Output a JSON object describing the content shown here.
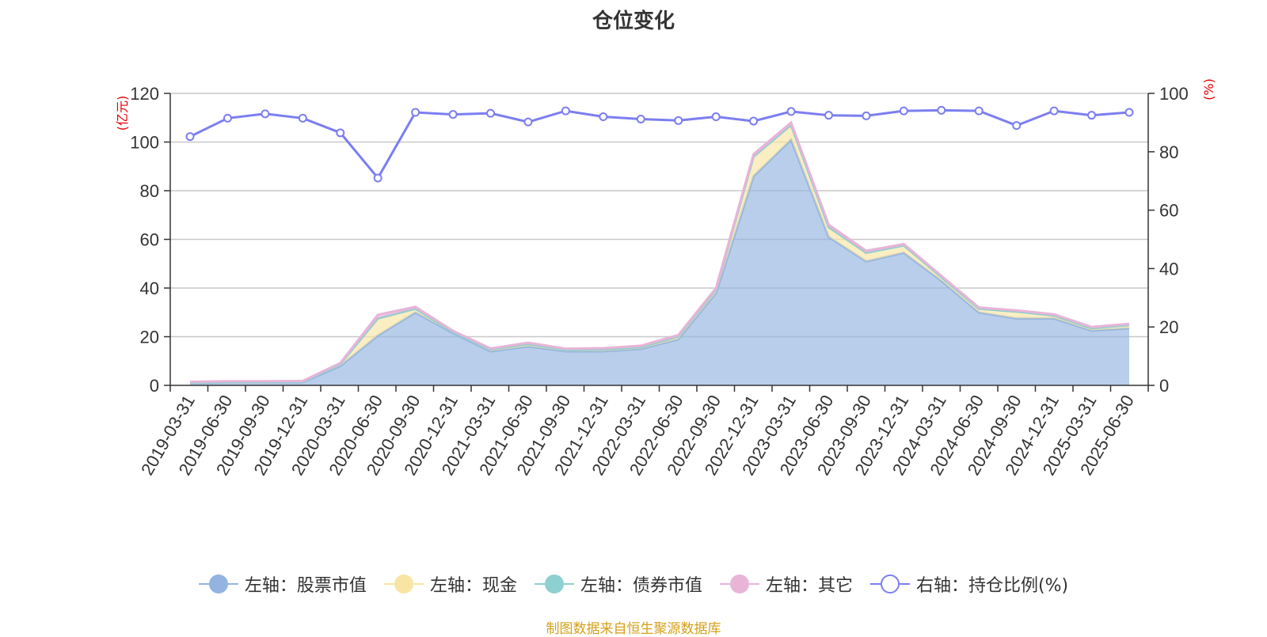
{
  "title": "仓位变化",
  "credit": "制图数据来自恒生聚源数据库",
  "chart_data": {
    "type": "area",
    "title": "仓位变化",
    "x": [
      "2019-03-31",
      "2019-06-30",
      "2019-09-30",
      "2019-12-31",
      "2020-03-31",
      "2020-06-30",
      "2020-09-30",
      "2020-12-31",
      "2021-03-31",
      "2021-06-30",
      "2021-09-30",
      "2021-12-31",
      "2022-03-31",
      "2022-06-30",
      "2022-09-30",
      "2022-12-31",
      "2023-03-31",
      "2023-06-30",
      "2023-09-30",
      "2023-12-31",
      "2024-03-31",
      "2024-06-30",
      "2024-09-30",
      "2024-12-31",
      "2025-03-31",
      "2025-06-30"
    ],
    "left_axis": {
      "unit": "(亿元)",
      "ylim": [
        0,
        120
      ],
      "ticks": [
        0,
        20,
        40,
        60,
        80,
        100,
        120
      ]
    },
    "right_axis": {
      "unit": "(%)",
      "ylim": [
        0,
        100
      ],
      "ticks": [
        0,
        20,
        40,
        60,
        80,
        100
      ]
    },
    "grid": true,
    "legend_position": "bottom",
    "series": [
      {
        "name": "左轴：股票市值",
        "axis": "left",
        "kind": "stacked-area",
        "color": "#93b4e0",
        "values": [
          1.0,
          1.2,
          1.2,
          1.3,
          8.0,
          20.5,
          30.0,
          21.5,
          14.0,
          16.0,
          14.0,
          14.0,
          15.0,
          19.0,
          38.0,
          86.0,
          101.0,
          61.0,
          51.0,
          54.5,
          43.0,
          30.0,
          27.5,
          27.5,
          22.5,
          23.5
        ]
      },
      {
        "name": "左轴：现金",
        "axis": "left",
        "kind": "stacked-area",
        "color": "#f9e5a3",
        "values": [
          0.2,
          0.2,
          0.2,
          0.2,
          0.8,
          7.0,
          1.5,
          0.5,
          0.8,
          1.0,
          0.6,
          0.8,
          0.7,
          1.2,
          1.5,
          8.0,
          6.0,
          4.0,
          3.5,
          3.0,
          1.5,
          1.5,
          2.8,
          1.2,
          1.0,
          1.3
        ]
      },
      {
        "name": "左轴：债券市值",
        "axis": "left",
        "kind": "stacked-area",
        "color": "#8ed0d0",
        "values": [
          0,
          0,
          0,
          0,
          0,
          0,
          0,
          0,
          0,
          0,
          0,
          0,
          0,
          0,
          0,
          0,
          0,
          0,
          0,
          0,
          0,
          0,
          0,
          0,
          0,
          0
        ]
      },
      {
        "name": "左轴：其它",
        "axis": "left",
        "kind": "stacked-area",
        "color": "#e8b4d8",
        "values": [
          0.3,
          0.3,
          0.3,
          0.3,
          0.4,
          1.5,
          0.8,
          0.4,
          0.4,
          0.5,
          0.5,
          0.5,
          0.6,
          0.5,
          0.5,
          1.0,
          1.0,
          1.0,
          0.8,
          0.6,
          0.5,
          0.5,
          0.5,
          0.5,
          0.5,
          0.5
        ]
      },
      {
        "name": "右轴：持仓比例(%)",
        "axis": "right",
        "kind": "line",
        "color": "#7b7ef0",
        "values": [
          85.2,
          91.5,
          93.0,
          91.5,
          86.5,
          71.0,
          93.5,
          92.8,
          93.2,
          90.2,
          94.0,
          92.0,
          91.2,
          90.7,
          92.0,
          90.5,
          93.8,
          92.5,
          92.3,
          94.0,
          94.2,
          94.0,
          89.0,
          94.0,
          92.5,
          93.5
        ]
      }
    ]
  }
}
